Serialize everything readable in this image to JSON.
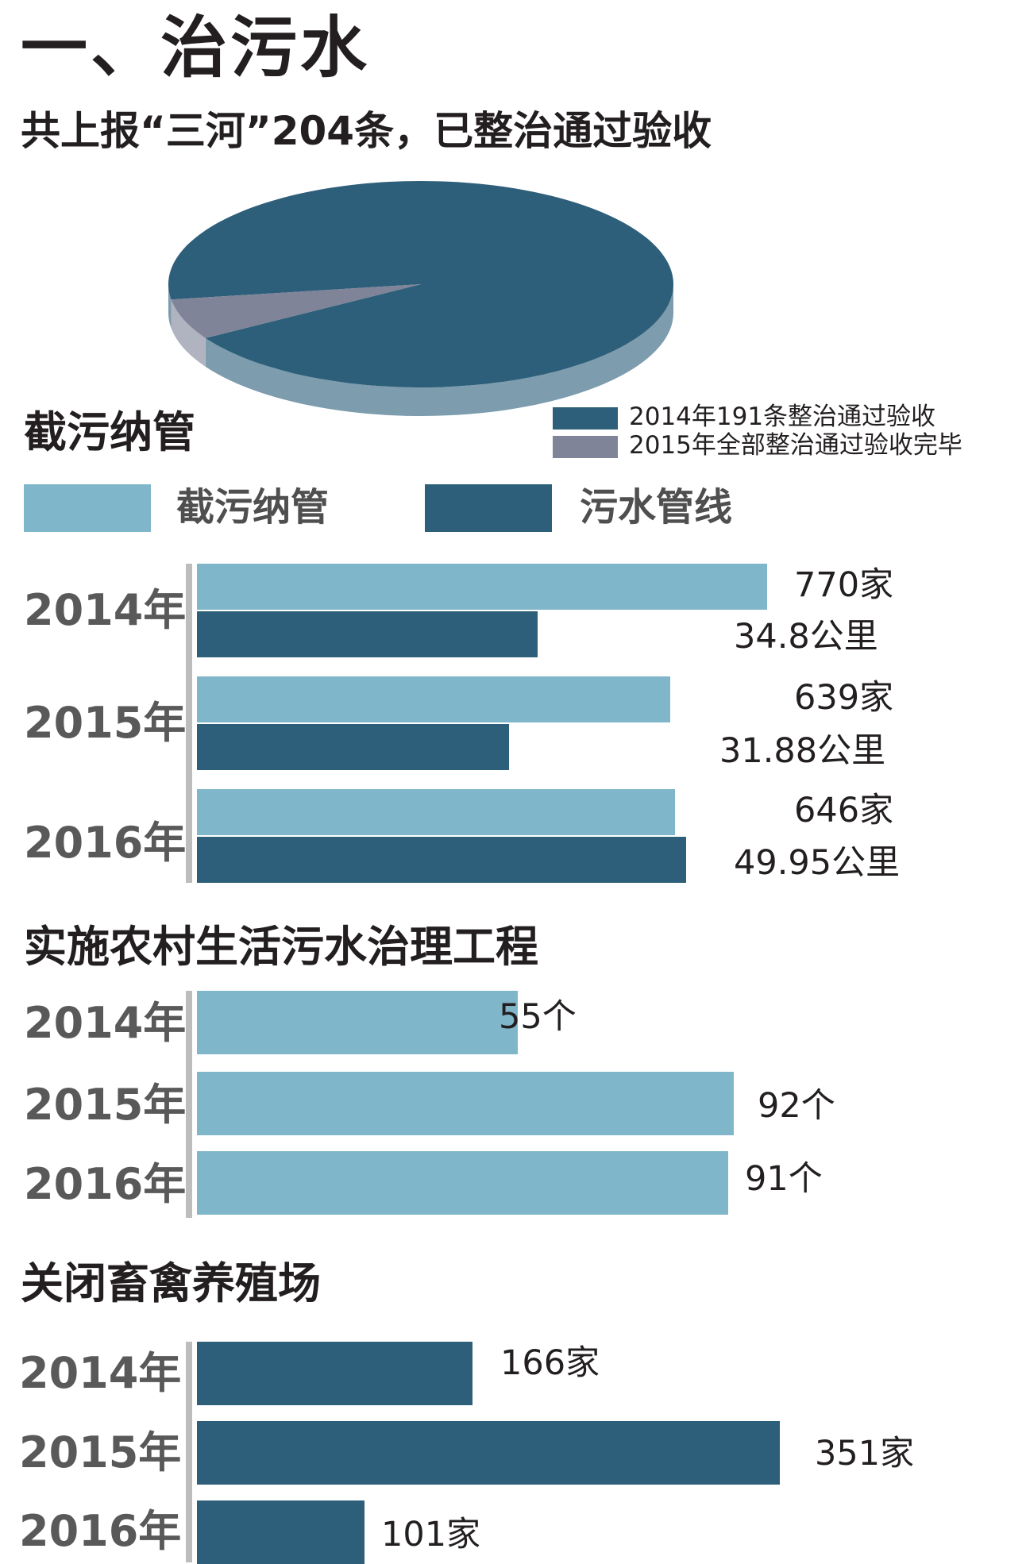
{
  "title": "一、治污水",
  "subtitle": "共上报“三河”204条，已整治通过验收",
  "colors": {
    "light": "#80b6ca",
    "dark": "#2e5f7a",
    "pie_gray": "#7f8499",
    "axis": "#bdbdbd"
  },
  "chart_data": [
    {
      "type": "pie",
      "title": "",
      "slices": [
        {
          "label": "2014年191条整治通过验收",
          "value": 191,
          "color": "#2e5f7a"
        },
        {
          "label": "2015年全部整治通过验收完毕",
          "value": 13,
          "color": "#7f8499"
        }
      ],
      "legend": "bottom-right"
    },
    {
      "type": "bar",
      "title": "截污纳管",
      "categories": [
        "2014年",
        "2015年",
        "2016年"
      ],
      "legend": [
        "截污纳管",
        "污水管线"
      ],
      "series": [
        {
          "name": "截污纳管",
          "values": [
            770,
            639,
            646
          ],
          "labels": [
            "770家",
            "639家",
            "646家"
          ],
          "color": "#80b6ca"
        },
        {
          "name": "污水管线",
          "values": [
            34.8,
            31.88,
            49.95
          ],
          "labels": [
            "34.8公里",
            "31.88公里",
            "49.95公里"
          ],
          "color": "#2e5f7a"
        }
      ]
    },
    {
      "type": "bar",
      "title": "实施农村生活污水治理工程",
      "categories": [
        "2014年",
        "2015年",
        "2016年"
      ],
      "values": [
        55,
        92,
        91
      ],
      "labels": [
        "55个",
        "92个",
        "91个"
      ],
      "color": "#80b6ca"
    },
    {
      "type": "bar",
      "title": "关闭畜禽养殖场",
      "categories": [
        "2014年",
        "2015年",
        "2016年"
      ],
      "values": [
        166,
        351,
        101
      ],
      "labels": [
        "166家",
        "351家",
        "101家"
      ],
      "color": "#2e5f7a"
    }
  ]
}
